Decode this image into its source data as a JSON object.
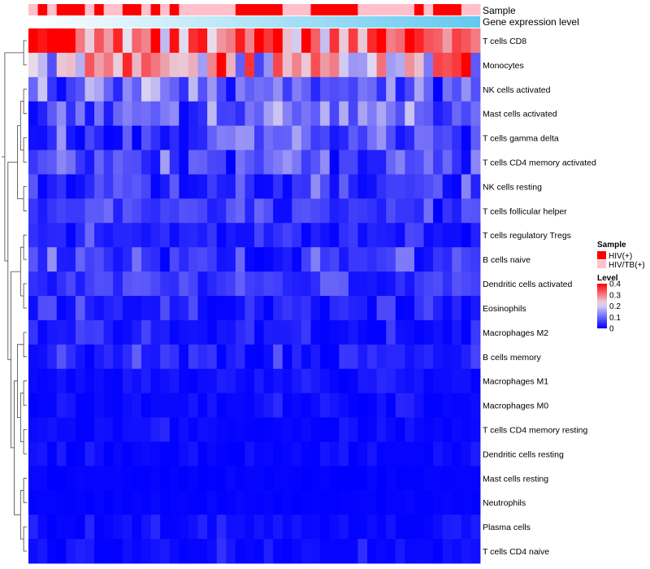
{
  "chart_data": {
    "type": "heatmap",
    "title": "",
    "annotations": {
      "sample_label": "Sample",
      "gene_label": "Gene expression level"
    },
    "rows": [
      "T cells CD8",
      "Monocytes",
      "NK cells activated",
      "Mast cells activated",
      "T cells gamma delta",
      "T cells CD4 memory activated",
      "NK cells resting",
      "T cells follicular helper",
      "T cells regulatory  Tregs",
      "B cells naive",
      "Dendritic cells activated",
      "Eosinophils",
      "Macrophages M2",
      "B cells memory",
      "Macrophages M1",
      "Macrophages M0",
      "T cells CD4 memory resting",
      "Dendritic cells resting",
      "Mast cells resting",
      "Neutrophils",
      "Plasma cells",
      "T cells CD4 naive"
    ],
    "samples": [
      "HIV/TB(+)",
      "HIV(+)",
      "HIV/TB(+)",
      "HIV(+)",
      "HIV(+)",
      "HIV(+)",
      "HIV/TB(+)",
      "HIV(+)",
      "HIV/TB(+)",
      "HIV/TB(+)",
      "HIV(+)",
      "HIV(+)",
      "HIV/TB(+)",
      "HIV(+)",
      "HIV/TB(+)",
      "HIV(+)",
      "HIV/TB(+)",
      "HIV/TB(+)",
      "HIV/TB(+)",
      "HIV/TB(+)",
      "HIV/TB(+)",
      "HIV/TB(+)",
      "HIV(+)",
      "HIV(+)",
      "HIV(+)",
      "HIV(+)",
      "HIV(+)",
      "HIV/TB(+)",
      "HIV/TB(+)",
      "HIV/TB(+)",
      "HIV(+)",
      "HIV(+)",
      "HIV(+)",
      "HIV(+)",
      "HIV(+)",
      "HIV/TB(+)",
      "HIV/TB(+)",
      "HIV/TB(+)",
      "HIV/TB(+)",
      "HIV/TB(+)",
      "HIV/TB(+)",
      "HIV(+)",
      "HIV/TB(+)",
      "HIV(+)",
      "HIV(+)",
      "HIV(+)",
      "HIV/TB(+)",
      "HIV/TB(+)"
    ],
    "row_means": [
      0.32,
      0.24,
      0.1,
      0.1,
      0.06,
      0.07,
      0.035,
      0.065,
      0.025,
      0.05,
      0.05,
      0.03,
      0.03,
      0.03,
      0.015,
      0.015,
      0.008,
      0.008,
      0.003,
      0.003,
      0.01,
      0.01
    ],
    "row_sd": [
      0.07,
      0.1,
      0.05,
      0.05,
      0.05,
      0.045,
      0.04,
      0.03,
      0.025,
      0.03,
      0.025,
      0.025,
      0.025,
      0.025,
      0.015,
      0.015,
      0.01,
      0.01,
      0.003,
      0.003,
      0.015,
      0.015
    ],
    "random_seed": 7,
    "colorscale": {
      "min": 0,
      "max": 0.4,
      "low": "#0000FF",
      "mid": "#E8E0F0",
      "high": "#FF0000",
      "mid_value": 0.22
    },
    "legend": {
      "sample_title": "Sample",
      "sample_items": [
        {
          "label": "HIV(+)",
          "color": "#FF0000"
        },
        {
          "label": "HIV/TB(+)",
          "color": "#FFC0CB"
        }
      ],
      "level_title": "Level",
      "level_ticks": [
        "0.4",
        "0.3",
        "0.2",
        "0.1",
        "0"
      ],
      "level_tick_values": [
        0.4,
        0.3,
        0.2,
        0.1,
        0
      ]
    },
    "gene_gradient": {
      "from": "#FFFFFF",
      "to": "#64C8F0"
    },
    "dendrogram": {
      "tree": [
        [
          [
            0,
            1
          ],
          [
            [
              [
                [
                  2,
                  3
                ],
                [
                  4,
                  5
                ]
              ],
              [
                6,
                7
              ]
            ],
            [
              [
                [
                  8,
                  9
                ],
                [
                  10,
                  11
                ]
              ],
              [
                [
                  [
                    12,
                    13
                  ],
                  [
                    [
                      14,
                      15
                    ],
                    [
                      16,
                      17
                    ]
                  ]
                ],
                [
                  [
                    18,
                    19
                  ],
                  [
                    20,
                    21
                  ]
                ]
              ]
            ]
          ]
        ]
      ]
    }
  }
}
